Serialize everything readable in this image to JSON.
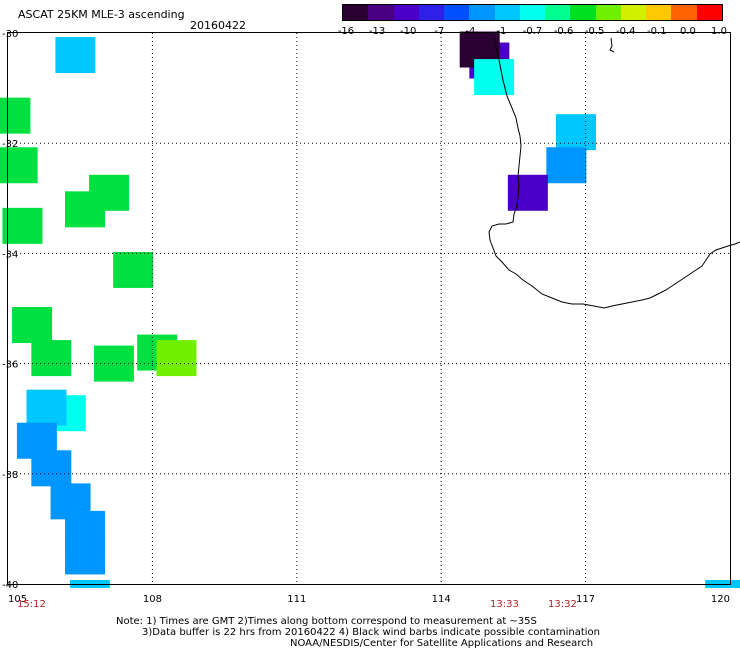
{
  "header": {
    "title": "ASCAT 25KM MLE-3 ascending",
    "date": "20160422"
  },
  "colorbar": {
    "labels": [
      "-16",
      "-13",
      "-10",
      "-7",
      "-4",
      "-1",
      "-0.7",
      "-0.6",
      "-0.5",
      "-0.4",
      "-0.1",
      "0.0",
      "1.0"
    ],
    "colors": [
      "#2a0033",
      "#4a0080",
      "#4b00c8",
      "#2f20e8",
      "#0050ff",
      "#0096ff",
      "#00c8ff",
      "#00ffee",
      "#00ff90",
      "#00e020",
      "#70f000",
      "#d0f000",
      "#ffc800",
      "#ff6400",
      "#ff0000"
    ]
  },
  "axes": {
    "lat_labels": [
      "-30",
      "-32",
      "-34",
      "-36",
      "-38",
      "-40"
    ],
    "lon_labels": [
      "105",
      "108",
      "111",
      "114",
      "117",
      "120"
    ]
  },
  "cells": [
    {
      "lon": 106.4,
      "lat": -30.4,
      "color": "#00c8ff"
    },
    {
      "lon": 105.05,
      "lat": -31.5,
      "color": "#00e040"
    },
    {
      "lon": 105.2,
      "lat": -32.4,
      "color": "#00e040"
    },
    {
      "lon": 105.3,
      "lat": -33.5,
      "color": "#00e040"
    },
    {
      "lon": 106.6,
      "lat": -33.2,
      "color": "#00e040"
    },
    {
      "lon": 107.1,
      "lat": -32.9,
      "color": "#00e040"
    },
    {
      "lon": 107.6,
      "lat": -34.3,
      "color": "#00e040"
    },
    {
      "lon": 105.5,
      "lat": -35.3,
      "color": "#00e040"
    },
    {
      "lon": 105.9,
      "lat": -35.9,
      "color": "#00e040"
    },
    {
      "lon": 107.2,
      "lat": -36.0,
      "color": "#00e040"
    },
    {
      "lon": 108.1,
      "lat": -35.8,
      "color": "#00e040"
    },
    {
      "lon": 108.5,
      "lat": -35.9,
      "color": "#70f000"
    },
    {
      "lon": 106.2,
      "lat": -36.9,
      "color": "#00ffee"
    },
    {
      "lon": 105.8,
      "lat": -36.8,
      "color": "#00c8ff"
    },
    {
      "lon": 105.6,
      "lat": -37.4,
      "color": "#0096ff"
    },
    {
      "lon": 105.9,
      "lat": -37.9,
      "color": "#0096ff"
    },
    {
      "lon": 106.3,
      "lat": -38.5,
      "color": "#0096ff"
    },
    {
      "lon": 106.6,
      "lat": -39.0,
      "color": "#0096ff"
    },
    {
      "lon": 106.6,
      "lat": -39.5,
      "color": "#0096ff"
    },
    {
      "lon": 115.0,
      "lat": -30.5,
      "color": "#4b00c8"
    },
    {
      "lon": 114.8,
      "lat": -30.3,
      "color": "#2a0033"
    },
    {
      "lon": 115.1,
      "lat": -30.8,
      "color": "#00ffee"
    },
    {
      "lon": 116.8,
      "lat": -31.8,
      "color": "#00c8ff"
    },
    {
      "lon": 116.6,
      "lat": -32.4,
      "color": "#0096ff"
    },
    {
      "lon": 115.8,
      "lat": -32.9,
      "color": "#4b00c8"
    },
    {
      "lon": 106.7,
      "lat": -40.0,
      "color": "#00c8ff"
    },
    {
      "lon": 119.9,
      "lat": -40.0,
      "color": "#00c8ff"
    }
  ],
  "times": [
    "15:12",
    "13:33",
    "13:32"
  ],
  "notes": [
    "Note: 1) Times are GMT 2)Times along bottom correspond to measurement at ~35S",
    "3)Data buffer is 22 hrs from 20160422 4) Black wind barbs indicate possible contamination",
    "NOAA/NESDIS/Center for Satellite Applications and Research"
  ]
}
